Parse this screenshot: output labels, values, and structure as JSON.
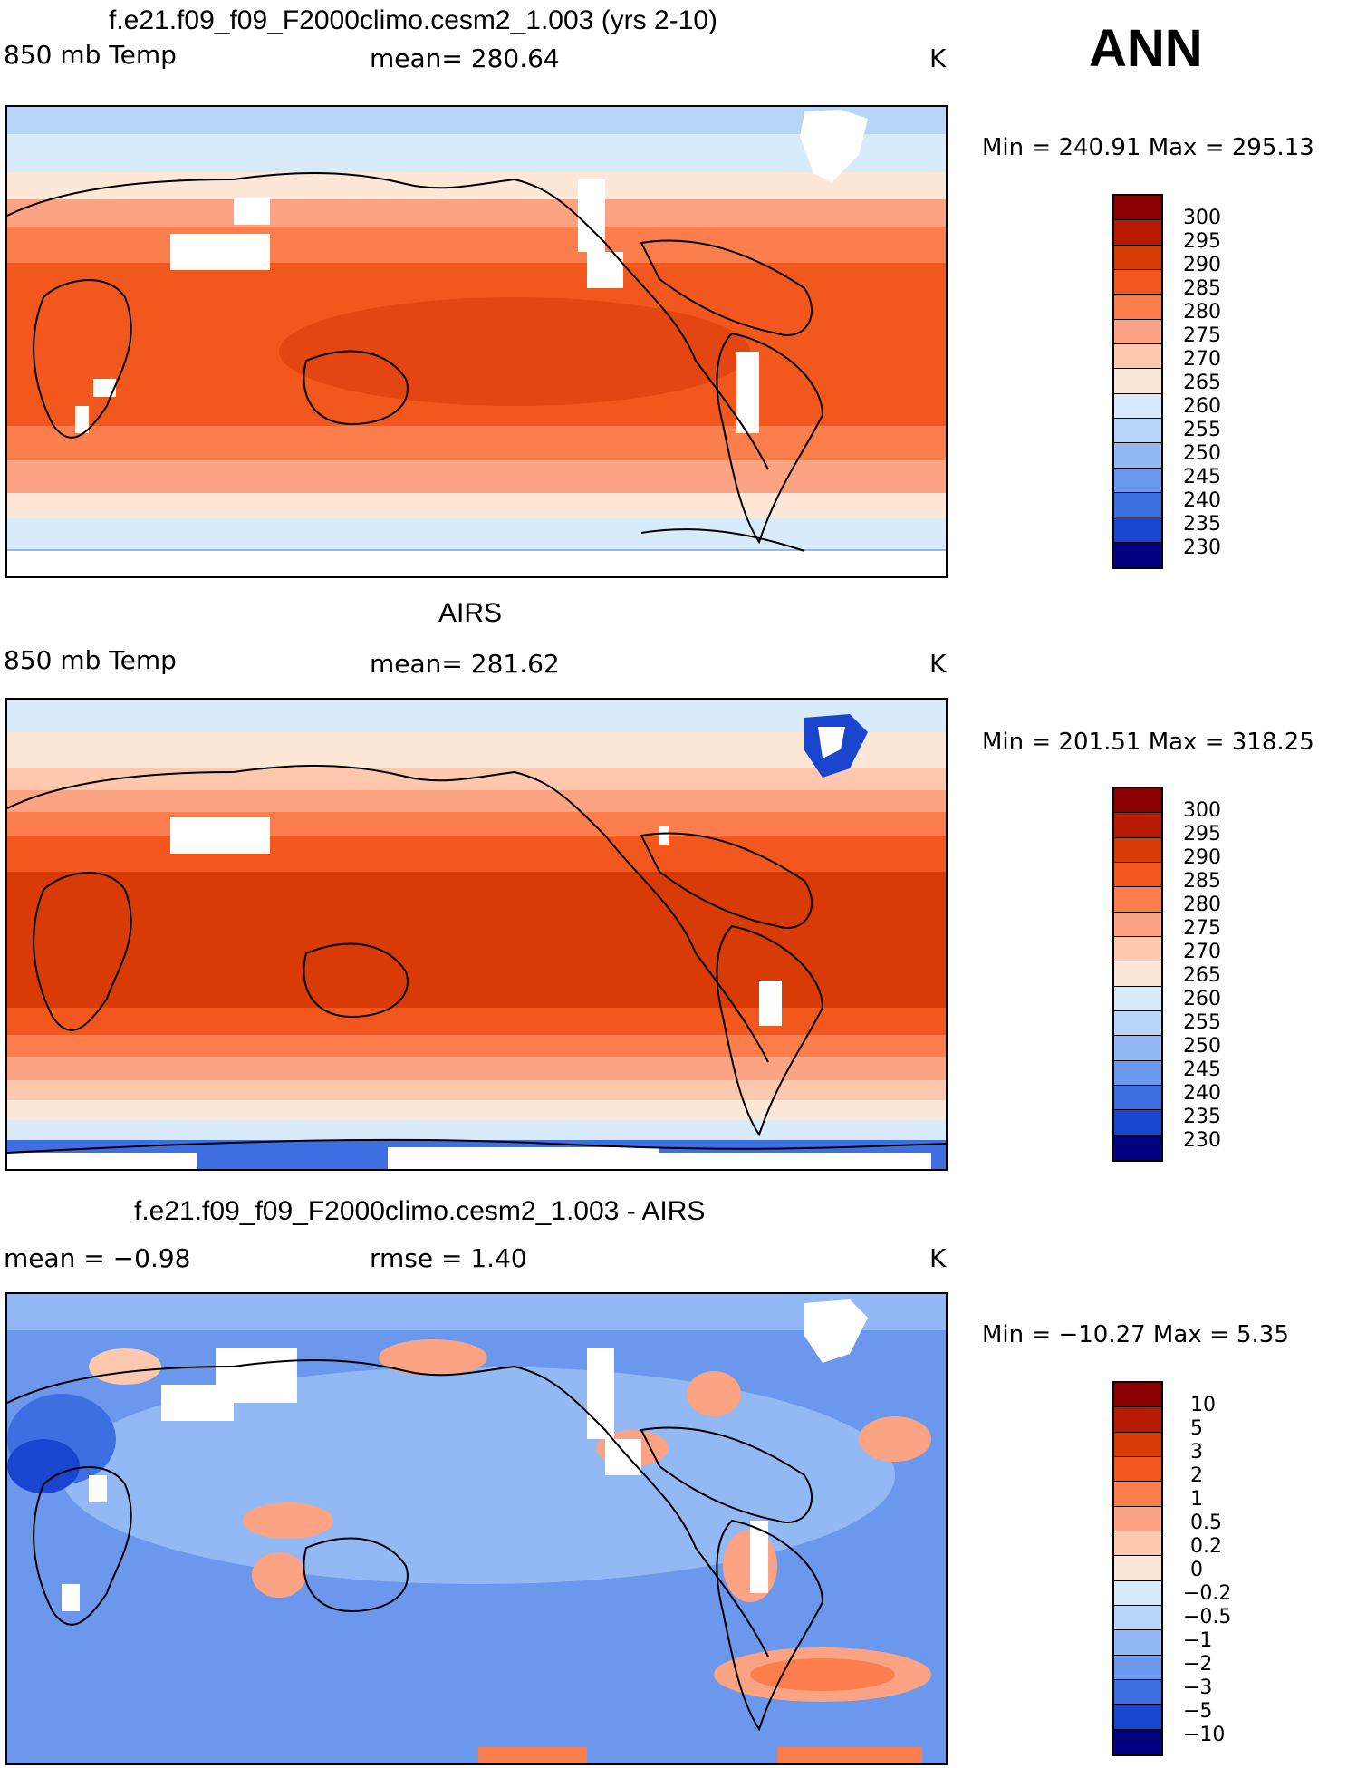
{
  "season": "ANN",
  "units": "K",
  "panels": [
    {
      "title": "f.e21.f09_f09_F2000climo.cesm2_1.003 (yrs 2-10)",
      "left_label": "850 mb Temp",
      "center_label": "mean= 280.64",
      "units": "K",
      "minmax": "Min = 240.91 Max = 295.13",
      "levels": [
        "300",
        "295",
        "290",
        "285",
        "280",
        "275",
        "270",
        "265",
        "260",
        "255",
        "250",
        "245",
        "240",
        "235",
        "230"
      ]
    },
    {
      "title": "AIRS",
      "left_label": "850 mb Temp",
      "center_label": "mean= 281.62",
      "units": "K",
      "minmax": "Min = 201.51 Max = 318.25",
      "levels": [
        "300",
        "295",
        "290",
        "285",
        "280",
        "275",
        "270",
        "265",
        "260",
        "255",
        "250",
        "245",
        "240",
        "235",
        "230"
      ]
    },
    {
      "title": "f.e21.f09_f09_F2000climo.cesm2_1.003 - AIRS",
      "left_label": "mean =   −0.98",
      "center_label": "rmse =    1.40",
      "units": "K",
      "minmax": "Min = −10.27 Max =    5.35",
      "levels": [
        "10",
        "5",
        "3",
        "2",
        "1",
        "0.5",
        "0.2",
        "0",
        "−0.2",
        "−0.5",
        "−1",
        "−2",
        "−3",
        "−5",
        "−10"
      ]
    }
  ],
  "colors": {
    "scale": [
      "#8b0000",
      "#b71a00",
      "#d93b06",
      "#f2581e",
      "#fb7e4c",
      "#fca383",
      "#fdc8ad",
      "#fde8d8",
      "#d8ebfb",
      "#b6d5f9",
      "#93b9f4",
      "#6b97ec",
      "#3d6fe3",
      "#1a45cf",
      "#0a22a8",
      "#000080"
    ]
  }
}
